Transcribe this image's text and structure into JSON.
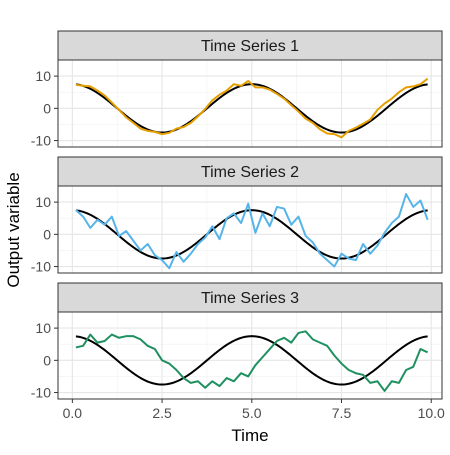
{
  "chart_data": {
    "type": "line",
    "xlabel": "Time",
    "ylabel": "Output variable",
    "xlim": [
      -0.4,
      10.3
    ],
    "ylim": [
      -12,
      15
    ],
    "x_ticks": [
      0,
      2.5,
      5,
      7.5,
      10
    ],
    "x_tick_labels": [
      "0.0",
      "2.5",
      "5.0",
      "7.5",
      "10.0"
    ],
    "y_ticks": [
      -10,
      0,
      10
    ],
    "y_tick_labels": [
      "-10",
      "0",
      "10"
    ],
    "grid": true,
    "reference_curve": {
      "amplitude": 7.5,
      "period": 5,
      "color": "#000000"
    },
    "panels": [
      {
        "title": "Time Series 1",
        "color": "#E69F00",
        "x": [
          0.1,
          0.3,
          0.5,
          0.7,
          0.9,
          1.1,
          1.3,
          1.5,
          1.7,
          1.9,
          2.1,
          2.3,
          2.5,
          2.7,
          2.9,
          3.1,
          3.3,
          3.5,
          3.7,
          3.9,
          4.1,
          4.3,
          4.5,
          4.7,
          4.9,
          5.1,
          5.3,
          5.5,
          5.7,
          5.9,
          6.1,
          6.3,
          6.5,
          6.7,
          6.9,
          7.1,
          7.3,
          7.5,
          7.7,
          7.9,
          8.1,
          8.3,
          8.5,
          8.7,
          8.9,
          9.1,
          9.3,
          9.5,
          9.7,
          9.9
        ],
        "values": [
          7.3,
          7.0,
          6.8,
          5.5,
          4.0,
          1.8,
          -0.5,
          -2.8,
          -4.5,
          -6.3,
          -7.0,
          -7.3,
          -8.0,
          -7.6,
          -6.3,
          -5.8,
          -4.5,
          -2.5,
          -0.2,
          2.5,
          4.2,
          5.5,
          7.5,
          7.0,
          8.5,
          6.5,
          6.5,
          5.8,
          4.5,
          3.0,
          1.0,
          -1.0,
          -3.2,
          -4.5,
          -6.5,
          -7.8,
          -8.0,
          -9.0,
          -7.0,
          -6.0,
          -4.8,
          -3.5,
          -0.5,
          1.5,
          3.0,
          5.0,
          6.5,
          6.8,
          7.5,
          9.2
        ]
      },
      {
        "title": "Time Series 2",
        "color": "#56B4E9",
        "x": [
          0.1,
          0.3,
          0.5,
          0.7,
          0.9,
          1.1,
          1.3,
          1.5,
          1.7,
          1.9,
          2.1,
          2.3,
          2.5,
          2.7,
          2.9,
          3.1,
          3.3,
          3.5,
          3.7,
          3.9,
          4.1,
          4.3,
          4.5,
          4.7,
          4.9,
          5.1,
          5.3,
          5.5,
          5.7,
          5.9,
          6.1,
          6.3,
          6.5,
          6.7,
          6.9,
          7.1,
          7.3,
          7.5,
          7.7,
          7.9,
          8.1,
          8.3,
          8.5,
          8.7,
          8.9,
          9.1,
          9.3,
          9.5,
          9.7,
          9.9
        ],
        "values": [
          7.5,
          5.5,
          2.0,
          4.5,
          3.0,
          5.5,
          -0.5,
          1.0,
          -2.0,
          -5.0,
          -3.0,
          -6.5,
          -8.0,
          -10.5,
          -5.5,
          -8.5,
          -6.0,
          -3.0,
          -1.0,
          2.5,
          -1.5,
          5.0,
          6.5,
          3.5,
          9.5,
          0.5,
          6.5,
          2.5,
          8.5,
          8.0,
          3.0,
          5.5,
          -0.5,
          -2.5,
          -6.0,
          -8.0,
          -10.0,
          -6.0,
          -7.5,
          -8.0,
          -3.0,
          -6.0,
          -3.5,
          0.5,
          3.5,
          5.5,
          12.5,
          8.5,
          10.5,
          4.5
        ]
      },
      {
        "title": "Time Series 3",
        "color": "#1F9060",
        "x": [
          0.1,
          0.3,
          0.5,
          0.7,
          0.9,
          1.1,
          1.3,
          1.5,
          1.7,
          1.9,
          2.1,
          2.3,
          2.5,
          2.7,
          2.9,
          3.1,
          3.3,
          3.5,
          3.7,
          3.9,
          4.1,
          4.3,
          4.5,
          4.7,
          4.9,
          5.1,
          5.3,
          5.5,
          5.7,
          5.9,
          6.1,
          6.3,
          6.5,
          6.7,
          6.9,
          7.1,
          7.3,
          7.5,
          7.7,
          7.9,
          8.1,
          8.3,
          8.5,
          8.7,
          8.9,
          9.1,
          9.3,
          9.5,
          9.7,
          9.9
        ],
        "values": [
          4.0,
          4.5,
          8.0,
          5.5,
          6.0,
          8.0,
          7.0,
          7.5,
          7.5,
          6.5,
          4.5,
          3.5,
          0.0,
          -1.0,
          -3.0,
          -5.5,
          -7.0,
          -6.5,
          -8.5,
          -6.5,
          -8.0,
          -5.5,
          -6.5,
          -4.0,
          -5.0,
          -1.5,
          1.0,
          3.5,
          6.0,
          7.0,
          5.5,
          8.5,
          9.0,
          6.5,
          5.5,
          4.5,
          1.5,
          -1.0,
          -3.0,
          -4.0,
          -4.5,
          -7.0,
          -6.5,
          -9.5,
          -6.5,
          -7.0,
          -3.0,
          -2.0,
          3.5,
          2.5
        ]
      }
    ]
  }
}
